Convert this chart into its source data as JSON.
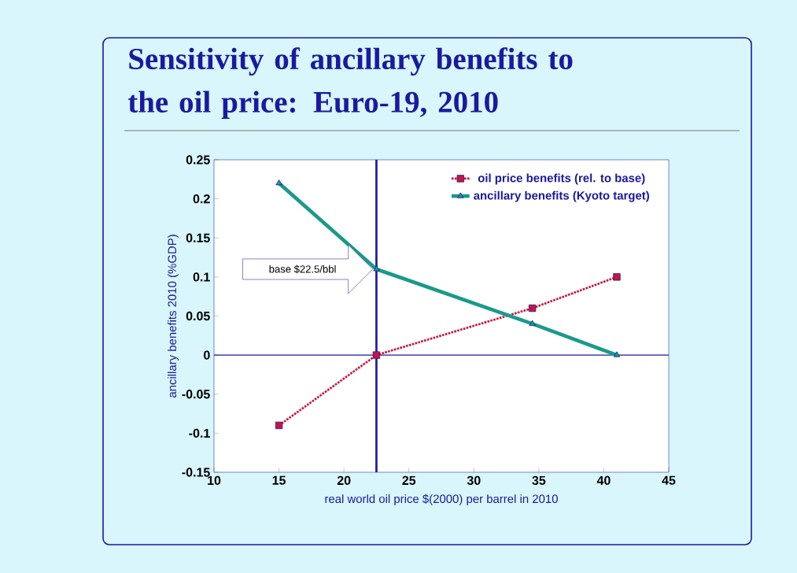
{
  "chart_data": {
    "type": "line",
    "title": "Sensitivity of ancillary benefits to the oil price: Euro-19, 2010",
    "xlabel": "real world oil price $(2000) per barrel in 2010",
    "ylabel": "ancillary benefits 2010 (%GDP)",
    "x": [
      15,
      22.5,
      34.5,
      41
    ],
    "series": [
      {
        "name": "oil price benefits (rel. to base)",
        "color": "#c8143c",
        "values": [
          -0.09,
          0,
          0.06,
          0.1
        ],
        "marker": "square",
        "line_style": "dotted"
      },
      {
        "name": "ancillary benefits (Kyoto target)",
        "color": "#1a9a8a",
        "values": [
          0.22,
          0.11,
          0.04,
          0
        ],
        "marker": "triangle",
        "line_style": "solid"
      }
    ],
    "xlim": [
      10,
      45
    ],
    "xticks": [
      10,
      15,
      20,
      25,
      30,
      35,
      40,
      45
    ],
    "ylim": [
      -0.15,
      0.25
    ],
    "yticks": [
      -0.15,
      -0.1,
      -0.05,
      0,
      0.05,
      0.1,
      0.15,
      0.2,
      0.25
    ],
    "ref_lines": [
      {
        "axis": "x",
        "value": 22.5,
        "color": "#1a1aa0"
      },
      {
        "axis": "y",
        "value": 0,
        "color": "#1a1aa0"
      }
    ],
    "annotations": [
      "base $22.5/bbl"
    ],
    "legend": "top right",
    "grid": false
  }
}
